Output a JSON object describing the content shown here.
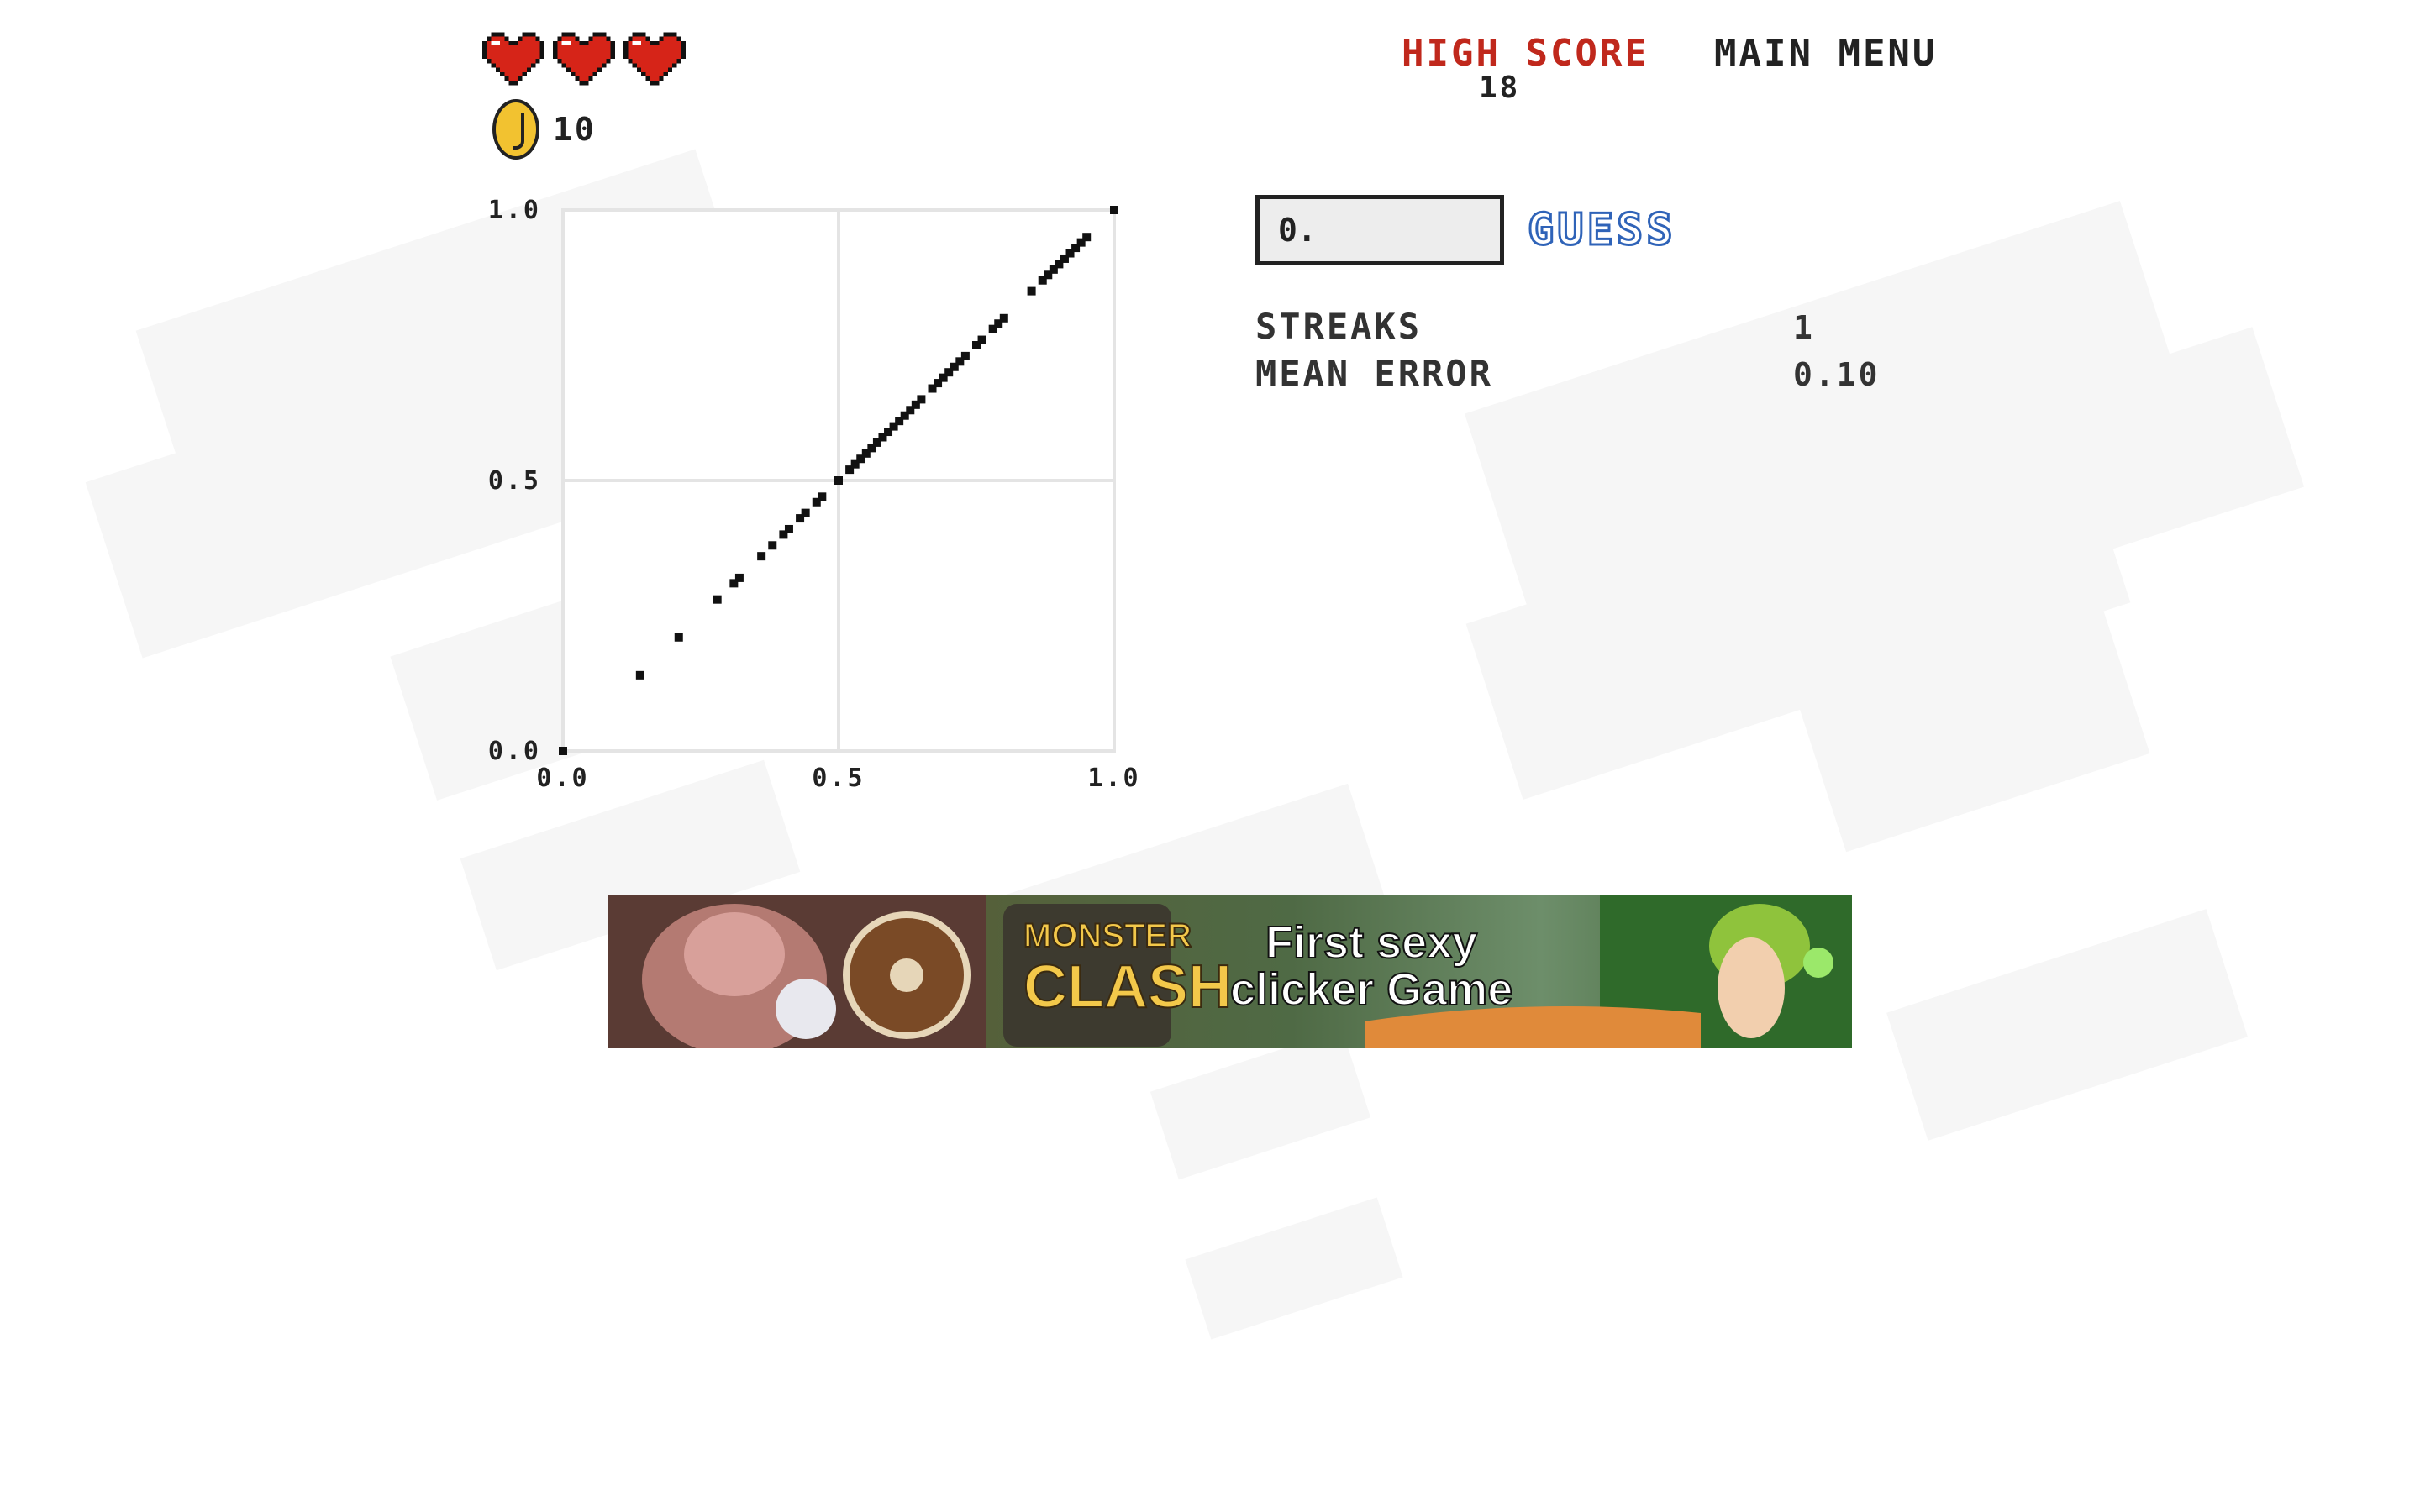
{
  "hud": {
    "hearts": 3,
    "heart_color": "#d62418",
    "coin_count": "10",
    "high_score_label": "HIGH SCORE",
    "high_score_value": "18",
    "main_menu_label": "MAIN MENU"
  },
  "guess": {
    "input_value": "0.",
    "button_label": "GUESS"
  },
  "stats": {
    "streaks_label": "STREAKS",
    "streaks_value": "1",
    "mean_error_label": "MEAN ERROR",
    "mean_error_value": "0.10"
  },
  "ad": {
    "logo_top": "MONSTER",
    "logo_bottom": "CLASH",
    "tagline_line1": "First sexy",
    "tagline_line2": "clicker Game"
  },
  "chart_data": {
    "type": "scatter",
    "xlim": [
      0,
      1
    ],
    "ylim": [
      0,
      1
    ],
    "x_ticks": [
      "0.0",
      "0.5",
      "1.0"
    ],
    "y_ticks": [
      "0.0",
      "0.5",
      "1.0"
    ],
    "grid": true,
    "points": [
      [
        0.0,
        0.0
      ],
      [
        0.14,
        0.14
      ],
      [
        0.21,
        0.21
      ],
      [
        0.28,
        0.28
      ],
      [
        0.31,
        0.31
      ],
      [
        0.32,
        0.32
      ],
      [
        0.36,
        0.36
      ],
      [
        0.38,
        0.38
      ],
      [
        0.4,
        0.4
      ],
      [
        0.41,
        0.41
      ],
      [
        0.43,
        0.43
      ],
      [
        0.44,
        0.44
      ],
      [
        0.46,
        0.46
      ],
      [
        0.47,
        0.47
      ],
      [
        0.5,
        0.5
      ],
      [
        0.52,
        0.52
      ],
      [
        0.53,
        0.53
      ],
      [
        0.54,
        0.54
      ],
      [
        0.55,
        0.55
      ],
      [
        0.56,
        0.56
      ],
      [
        0.57,
        0.57
      ],
      [
        0.58,
        0.58
      ],
      [
        0.59,
        0.59
      ],
      [
        0.6,
        0.6
      ],
      [
        0.61,
        0.61
      ],
      [
        0.62,
        0.62
      ],
      [
        0.63,
        0.63
      ],
      [
        0.64,
        0.64
      ],
      [
        0.65,
        0.65
      ],
      [
        0.67,
        0.67
      ],
      [
        0.68,
        0.68
      ],
      [
        0.69,
        0.69
      ],
      [
        0.7,
        0.7
      ],
      [
        0.71,
        0.71
      ],
      [
        0.72,
        0.72
      ],
      [
        0.73,
        0.73
      ],
      [
        0.75,
        0.75
      ],
      [
        0.76,
        0.76
      ],
      [
        0.78,
        0.78
      ],
      [
        0.79,
        0.79
      ],
      [
        0.8,
        0.8
      ],
      [
        0.85,
        0.85
      ],
      [
        0.87,
        0.87
      ],
      [
        0.88,
        0.88
      ],
      [
        0.89,
        0.89
      ],
      [
        0.9,
        0.9
      ],
      [
        0.91,
        0.91
      ],
      [
        0.92,
        0.92
      ],
      [
        0.93,
        0.93
      ],
      [
        0.94,
        0.94
      ],
      [
        0.95,
        0.95
      ],
      [
        1.0,
        1.0
      ]
    ]
  }
}
